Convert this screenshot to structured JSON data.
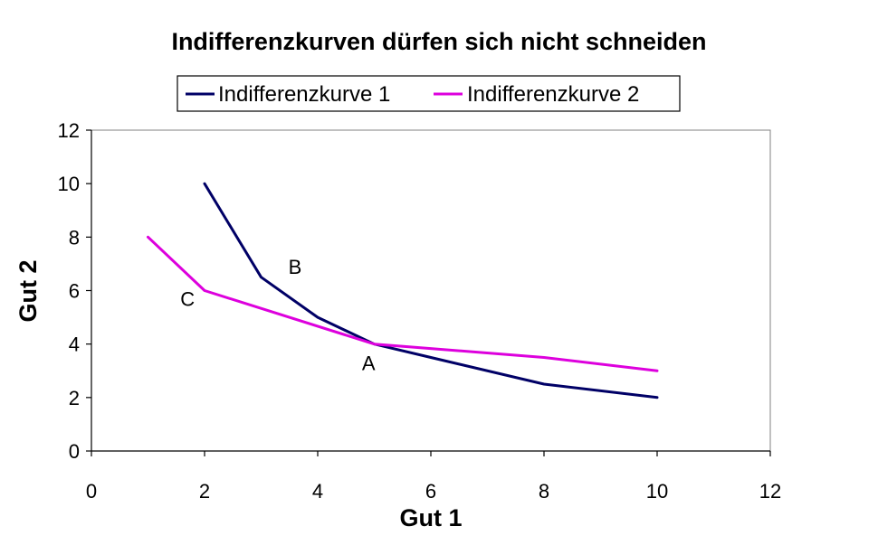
{
  "chart_data": {
    "type": "line",
    "title": "Indifferenzkurven dürfen sich nicht schneiden",
    "xlabel": "Gut 1",
    "ylabel": "Gut 2",
    "xlim": [
      0,
      12
    ],
    "ylim": [
      0,
      12
    ],
    "xticks": [
      0,
      2,
      4,
      6,
      8,
      10,
      12
    ],
    "yticks": [
      0,
      2,
      4,
      6,
      8,
      10,
      12
    ],
    "grid": false,
    "legend_position": "top",
    "series": [
      {
        "name": "Indifferenzkurve 1",
        "color": "#000066",
        "points": [
          [
            2,
            10
          ],
          [
            3,
            6.5
          ],
          [
            4,
            5
          ],
          [
            5,
            4
          ],
          [
            6,
            3.5
          ],
          [
            8,
            2.5
          ],
          [
            10,
            2
          ]
        ]
      },
      {
        "name": "Indifferenzkurve 2",
        "color": "#dd00dd",
        "points": [
          [
            1,
            8
          ],
          [
            2,
            6
          ],
          [
            5,
            4
          ],
          [
            8,
            3.5
          ],
          [
            10,
            3
          ]
        ]
      }
    ],
    "annotations": [
      {
        "text": "B",
        "x": 3.6,
        "y": 6.9
      },
      {
        "text": "C",
        "x": 1.7,
        "y": 5.7
      },
      {
        "text": "A",
        "x": 4.9,
        "y": 3.3
      }
    ]
  }
}
